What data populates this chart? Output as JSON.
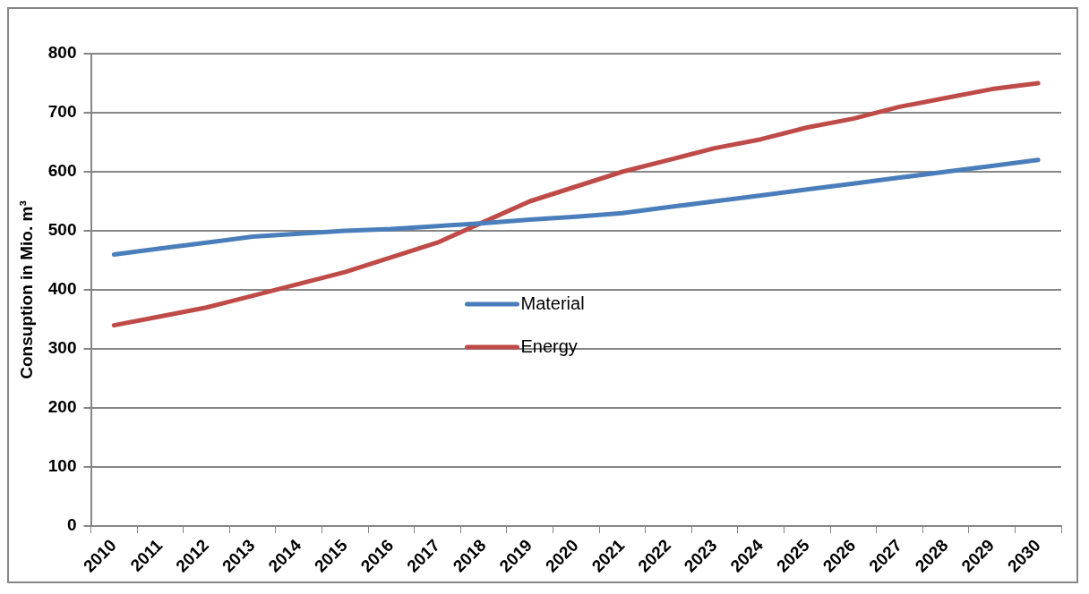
{
  "chart_data": {
    "type": "line",
    "ylabel": "Consuption in Mio. m³",
    "categories": [
      "2010",
      "2011",
      "2012",
      "2013",
      "2014",
      "2015",
      "2016",
      "2017",
      "2018",
      "2019",
      "2020",
      "2021",
      "2022",
      "2023",
      "2024",
      "2025",
      "2026",
      "2027",
      "2028",
      "2029",
      "2030"
    ],
    "series": [
      {
        "name": "Material",
        "color": "#4a7ebb",
        "values": [
          460,
          470,
          480,
          490,
          495,
          500,
          503,
          508,
          513,
          519,
          524,
          530,
          540,
          550,
          560,
          570,
          580,
          590,
          600,
          610,
          620
        ]
      },
      {
        "name": "Energy",
        "color": "#be4b48",
        "values": [
          340,
          355,
          370,
          390,
          410,
          430,
          455,
          480,
          515,
          550,
          575,
          600,
          620,
          640,
          655,
          675,
          690,
          710,
          725,
          740,
          750
        ]
      }
    ],
    "ylim": [
      0,
      800
    ],
    "yticks": [
      0,
      100,
      200,
      300,
      400,
      500,
      600,
      700,
      800
    ],
    "grid": "y",
    "legend": "center",
    "marker": "none",
    "line_style": "solid"
  }
}
